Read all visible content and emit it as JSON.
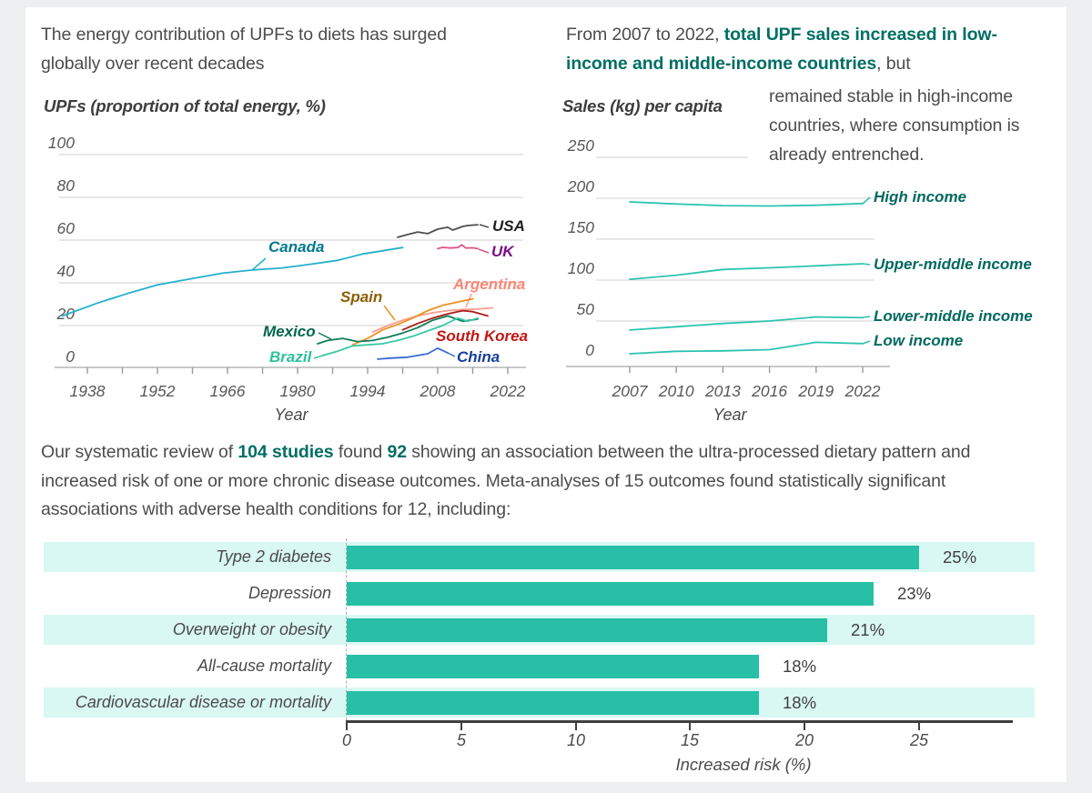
{
  "page": {
    "background": "#edeff1",
    "card_background": "#ffffff"
  },
  "colors": {
    "body_text": "#4c4c4c",
    "accent_teal": "#006e64",
    "gridline": "#d9d9d9",
    "axis_light": "#b5b5b5",
    "axis_dark": "#3f3f3f",
    "bar_fill": "#27bfa6",
    "row_stripe": "#d9f7f3",
    "sales_line": "#2dc3b2",
    "sales_label": "#00695f"
  },
  "intro_left": {
    "text": "The energy contribution of UPFs to diets has surged globally over recent decades"
  },
  "intro_right": {
    "seg1": "From 2007 to 2022, ",
    "seg2": "total UPF sales increased in low-income and middle-income countries",
    "seg3": ", but ",
    "seg4": "remained stable in high-income countries, where consumption is already entrenched."
  },
  "review_paragraph": {
    "seg1": "Our systematic review of ",
    "seg2": "104 studies",
    "seg3": " found ",
    "seg4": "92",
    "seg5": " showing an association between the ultra-processed dietary pattern and increased risk of one or more chronic disease outcomes. Meta-analyses of 15 outcomes found statistically significant associations with adverse health conditions for 12, including:"
  },
  "chart_data": [
    {
      "id": "upf-energy-by-country",
      "type": "line",
      "title": "UPFs (proportion of total energy, %)",
      "xlabel": "Year",
      "ylim": [
        0,
        100
      ],
      "xlim": [
        1933,
        2022
      ],
      "y_ticks": [
        0,
        20,
        40,
        60,
        80,
        100
      ],
      "x_ticks": [
        1938,
        1952,
        1966,
        1980,
        1994,
        2008,
        2022
      ],
      "x_minor_ticks": [
        1945,
        1959,
        1973,
        1987,
        2001,
        2015
      ],
      "grid": true,
      "series": [
        {
          "name": "Canada",
          "color": "#25b0cb",
          "label_color": "#007a8c",
          "x": [
            1933,
            1940,
            1946,
            1952,
            1959,
            1965,
            1971,
            1977,
            1982,
            1988,
            1993,
            2001
          ],
          "y": [
            24.5,
            30.5,
            35,
            39,
            42,
            44.5,
            46,
            47,
            48.5,
            50.5,
            53.5,
            56.5
          ]
        },
        {
          "name": "USA",
          "color": "#4f4f4f",
          "label_color": "#1f1f1f",
          "x": [
            2000,
            2002,
            2004,
            2006,
            2008,
            2010,
            2011,
            2013,
            2014,
            2016
          ],
          "y": [
            61.3,
            62.6,
            63.8,
            63,
            65.1,
            66,
            64.7,
            66.4,
            66.8,
            67.2
          ]
        },
        {
          "name": "UK",
          "color": "#e0568b",
          "label_color": "#7c0e87",
          "x": [
            2008,
            2009,
            2010.5,
            2012,
            2012.8,
            2013.6,
            2015,
            2016
          ],
          "y": [
            56,
            56.6,
            56.3,
            56.5,
            57.8,
            56.3,
            56.4,
            56
          ]
        },
        {
          "name": "Argentina",
          "color": "#f99e8d",
          "label_color": "#f88775",
          "x": [
            1995,
            1998,
            2001,
            2004,
            2007,
            2010,
            2013,
            2016,
            2019
          ],
          "y": [
            17,
            20,
            22.5,
            24.5,
            26,
            27,
            27.5,
            27.7,
            28.3
          ]
        },
        {
          "name": "Spain",
          "color": "#eb9123",
          "label_color": "#8d5f04",
          "x": [
            1991,
            1994,
            1997,
            2000,
            2003,
            2006,
            2009,
            2012,
            2015
          ],
          "y": [
            11,
            14,
            18,
            20.5,
            23.5,
            27,
            29.5,
            31,
            32.5
          ]
        },
        {
          "name": "Mexico",
          "color": "#0f7d55",
          "label_color": "#00684a",
          "x": [
            1984,
            1986,
            1989,
            1992,
            1995,
            1998,
            2001,
            2004,
            2007,
            2010,
            2013,
            2016
          ],
          "y": [
            11.5,
            13,
            14,
            12.5,
            13,
            14.5,
            16.5,
            19,
            22.5,
            24.5,
            22,
            23
          ]
        },
        {
          "name": "Brazil",
          "color": "#38c9a4",
          "label_color": "#2ec19b",
          "x": [
            1985,
            1988,
            1991,
            1994,
            1997,
            2000,
            2003,
            2006,
            2009,
            2012,
            2014,
            2016
          ],
          "y": [
            6,
            8,
            10.5,
            11,
            11.5,
            13,
            15,
            17.5,
            20,
            23.5,
            22,
            23.5
          ]
        },
        {
          "name": "South Korea",
          "color": "#ae1a17",
          "label_color": "#c51713",
          "x": [
            2001,
            2004,
            2007,
            2010,
            2013,
            2015,
            2018
          ],
          "y": [
            18,
            21,
            23.5,
            25.5,
            27,
            26.5,
            24.5
          ]
        },
        {
          "name": "China",
          "color": "#3a6ad4",
          "label_color": "#173f9e",
          "x": [
            1996,
            1999,
            2002,
            2004,
            2006,
            2008,
            2010
          ],
          "y": [
            4.3,
            4.8,
            5.2,
            6,
            6.8,
            9.4,
            7.2
          ]
        }
      ]
    },
    {
      "id": "upf-sales-by-income",
      "type": "line",
      "title": "Sales (kg) per capita",
      "xlabel": "Year",
      "ylim": [
        0,
        250
      ],
      "xlim": [
        2007,
        2022
      ],
      "y_ticks": [
        0,
        50,
        100,
        150,
        200,
        250
      ],
      "x_ticks": [
        2007,
        2010,
        2013,
        2016,
        2019,
        2022
      ],
      "x_minor_ticks": [],
      "grid": true,
      "series": [
        {
          "name": "High income",
          "color": "#2dc3b2",
          "label_color": "#00695f",
          "x": [
            2007,
            2010,
            2013,
            2016,
            2019,
            2022
          ],
          "y": [
            195.5,
            193,
            191,
            190.5,
            191.5,
            193.5
          ]
        },
        {
          "name": "Upper-middle income",
          "color": "#2dc3b2",
          "label_color": "#00695f",
          "x": [
            2007,
            2010,
            2013,
            2016,
            2019,
            2022
          ],
          "y": [
            101,
            106,
            113,
            115,
            117.5,
            120
          ]
        },
        {
          "name": "Lower-middle income",
          "color": "#2dc3b2",
          "label_color": "#00695f",
          "x": [
            2007,
            2010,
            2013,
            2016,
            2019,
            2022
          ],
          "y": [
            39,
            43,
            47,
            50,
            55,
            54
          ]
        },
        {
          "name": "Low income",
          "color": "#2dc3b2",
          "label_color": "#00695f",
          "x": [
            2007,
            2010,
            2013,
            2016,
            2019,
            2022
          ],
          "y": [
            10,
            13,
            13.5,
            15,
            24,
            22.5
          ]
        }
      ]
    },
    {
      "id": "increased-risk-outcomes",
      "type": "bar",
      "categories": [
        "Type 2 diabetes",
        "Depression",
        "Overweight or obesity",
        "All-cause mortality",
        "Cardiovascular disease or mortality"
      ],
      "values": [
        25,
        23,
        21,
        18,
        18
      ],
      "value_labels": [
        "25%",
        "23%",
        "21%",
        "18%",
        "18%"
      ],
      "x_ticks": [
        0,
        5,
        10,
        15,
        20,
        25
      ],
      "xlim": [
        0,
        29
      ],
      "xlabel": "Increased risk (%)"
    }
  ]
}
